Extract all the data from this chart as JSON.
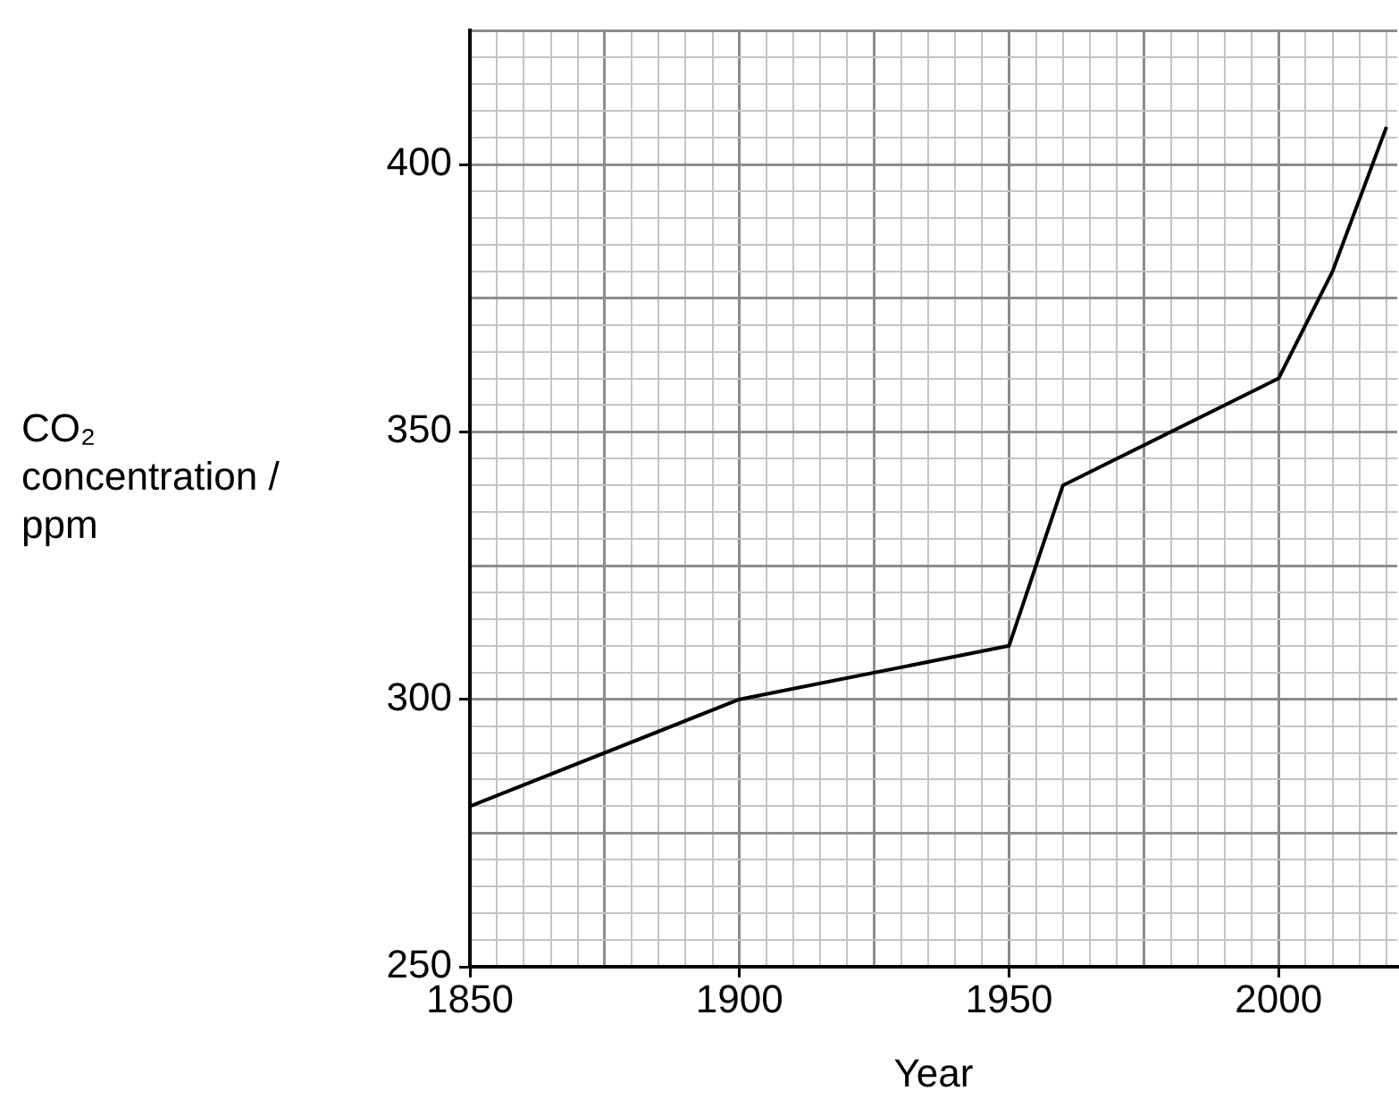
{
  "chart_data": {
    "type": "line",
    "xlabel": "Year",
    "ylabel": "CO₂ concentration / ppm",
    "series": [
      {
        "color": "#000000",
        "x": [
          1850,
          1900,
          1950,
          1960,
          2000,
          2010,
          2020
        ],
        "values": [
          280,
          300,
          310,
          340,
          360,
          380,
          407
        ]
      }
    ],
    "xlim": [
      1850,
      2022
    ],
    "xticks": [
      1850,
      {
        "value": 1855,
        "label": null
      },
      {
        "value": 1860,
        "label": null
      },
      {
        "value": 1865,
        "label": null
      },
      {
        "value": 1870,
        "label": null
      },
      {
        "value": 1875,
        "label": null
      },
      {
        "value": 1880,
        "label": null
      },
      {
        "value": 1885,
        "label": null
      },
      {
        "value": 1890,
        "label": null
      },
      {
        "value": 1895,
        "label": null
      },
      1900,
      {
        "value": 1905,
        "label": null
      },
      {
        "value": 1910,
        "label": null
      },
      {
        "value": 1915,
        "label": null
      },
      {
        "value": 1920,
        "label": null
      },
      {
        "value": 1925,
        "label": null
      },
      {
        "value": 1930,
        "label": null
      },
      {
        "value": 1935,
        "label": null
      },
      {
        "value": 1940,
        "label": null
      },
      {
        "value": 1945,
        "label": null
      },
      1950,
      {
        "value": 1955,
        "label": null
      },
      {
        "value": 1960,
        "label": null
      },
      {
        "value": 1965,
        "label": null
      },
      {
        "value": 1970,
        "label": null
      },
      {
        "value": 1975,
        "label": null
      },
      {
        "value": 1980,
        "label": null
      },
      {
        "value": 1985,
        "label": null
      },
      {
        "value": 1990,
        "label": null
      },
      {
        "value": 1995,
        "label": null
      },
      2000,
      {
        "value": 2005,
        "label": null
      },
      {
        "value": 2010,
        "label": null
      },
      {
        "value": 2015,
        "label": null
      },
      {
        "value": 2020,
        "label": null
      }
    ],
    "ylim": [
      250,
      425
    ],
    "yticks": [
      250,
      {
        "value": 255,
        "label": null
      },
      {
        "value": 260,
        "label": null
      },
      {
        "value": 265,
        "label": null
      },
      {
        "value": 270,
        "label": null
      },
      {
        "value": 275,
        "label": null
      },
      {
        "value": 280,
        "label": null
      },
      {
        "value": 285,
        "label": null
      },
      {
        "value": 290,
        "label": null
      },
      {
        "value": 295,
        "label": null
      },
      300,
      {
        "value": 305,
        "label": null
      },
      {
        "value": 310,
        "label": null
      },
      {
        "value": 315,
        "label": null
      },
      {
        "value": 320,
        "label": null
      },
      {
        "value": 325,
        "label": null
      },
      {
        "value": 330,
        "label": null
      },
      {
        "value": 335,
        "label": null
      },
      {
        "value": 340,
        "label": null
      },
      {
        "value": 345,
        "label": null
      },
      350,
      {
        "value": 355,
        "label": null
      },
      {
        "value": 360,
        "label": null
      },
      {
        "value": 365,
        "label": null
      },
      {
        "value": 370,
        "label": null
      },
      {
        "value": 375,
        "label": null
      },
      {
        "value": 380,
        "label": null
      },
      {
        "value": 385,
        "label": null
      },
      {
        "value": 390,
        "label": null
      },
      {
        "value": 395,
        "label": null
      },
      400,
      {
        "value": 405,
        "label": null
      },
      {
        "value": 410,
        "label": null
      },
      {
        "value": 415,
        "label": null
      },
      {
        "value": 420,
        "label": null
      },
      {
        "value": 425,
        "label": null
      }
    ],
    "grid": true,
    "legend": false,
    "marker": "none",
    "line_style": "solid"
  }
}
